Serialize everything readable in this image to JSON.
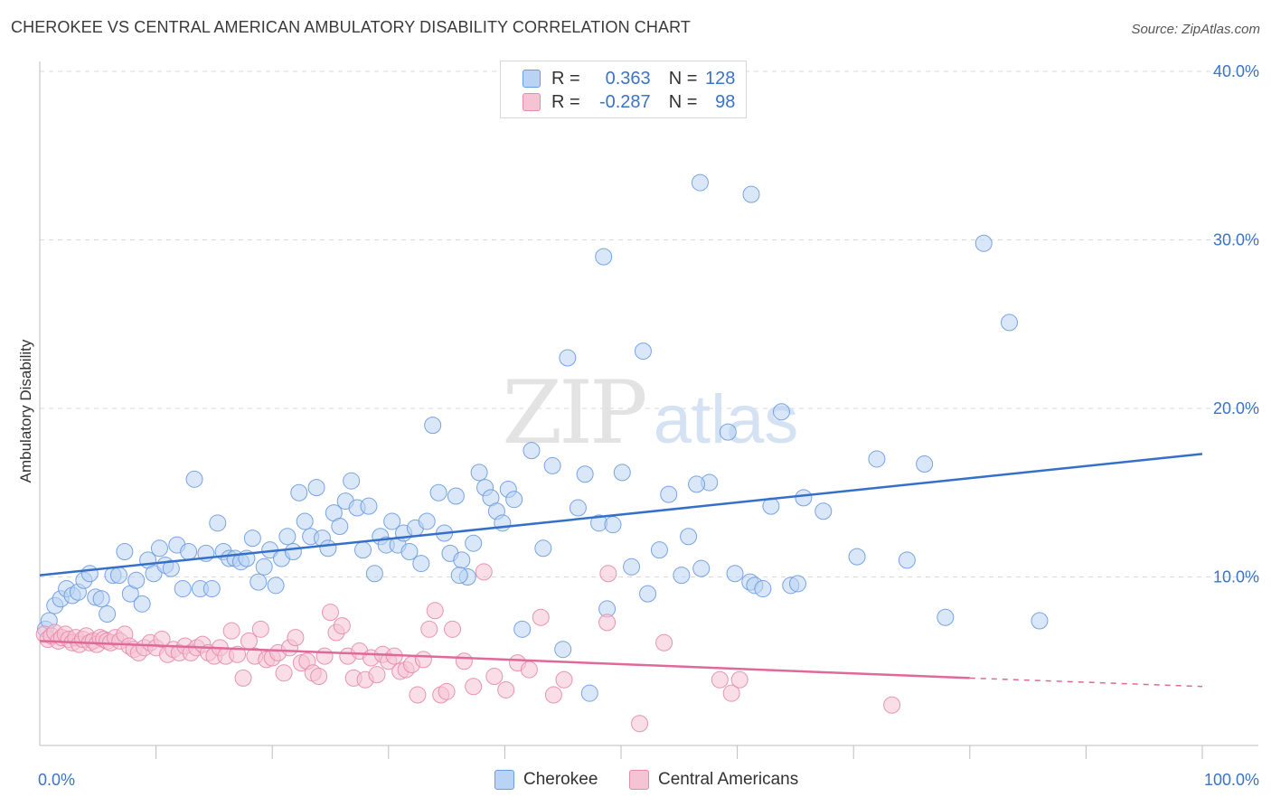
{
  "title": "CHEROKEE VS CENTRAL AMERICAN AMBULATORY DISABILITY CORRELATION CHART",
  "source": "Source: ZipAtlas.com",
  "watermark": {
    "zip": "ZIP",
    "atlas": "atlas"
  },
  "legend": {
    "r_label": "R =",
    "n_label": "N =",
    "rows": [
      {
        "r": "0.363",
        "n": "128",
        "fill": "#b9d3f4",
        "stroke": "#6a9be0"
      },
      {
        "r": "-0.287",
        "n": "98",
        "fill": "#f6c3d4",
        "stroke": "#e58aa8"
      }
    ]
  },
  "chart_data": {
    "type": "scatter",
    "title": "CHEROKEE VS CENTRAL AMERICAN AMBULATORY DISABILITY CORRELATION CHART",
    "xlabel": "",
    "ylabel": "Ambulatory Disability",
    "xlim": [
      0,
      100
    ],
    "ylim": [
      0,
      40
    ],
    "x_tick_labels": [
      "0.0%",
      "100.0%"
    ],
    "y_ticks": [
      10,
      20,
      30,
      40
    ],
    "y_tick_labels": [
      "10.0%",
      "20.0%",
      "30.0%",
      "40.0%"
    ],
    "grid": "horizontal dashed",
    "legend_position": "top-center",
    "series": [
      {
        "name": "Cherokee",
        "color": "#6a9be0",
        "fill": "#b9d3f4",
        "trend": {
          "x": [
            0,
            100
          ],
          "y": [
            10.1,
            17.3
          ]
        },
        "points": [
          [
            0.5,
            6.9
          ],
          [
            0.8,
            7.4
          ],
          [
            1.3,
            8.3
          ],
          [
            1.8,
            8.7
          ],
          [
            2.3,
            9.3
          ],
          [
            2.8,
            8.9
          ],
          [
            3.3,
            9.1
          ],
          [
            3.8,
            9.8
          ],
          [
            4.3,
            10.2
          ],
          [
            4.8,
            8.8
          ],
          [
            5.3,
            8.7
          ],
          [
            5.8,
            7.8
          ],
          [
            6.3,
            10.1
          ],
          [
            6.8,
            10.1
          ],
          [
            7.3,
            11.5
          ],
          [
            7.8,
            9.0
          ],
          [
            8.3,
            9.8
          ],
          [
            8.8,
            8.4
          ],
          [
            9.3,
            11.0
          ],
          [
            9.8,
            10.2
          ],
          [
            10.3,
            11.7
          ],
          [
            10.8,
            10.7
          ],
          [
            11.3,
            10.5
          ],
          [
            11.8,
            11.9
          ],
          [
            12.3,
            9.3
          ],
          [
            12.8,
            11.5
          ],
          [
            13.3,
            15.8
          ],
          [
            13.8,
            9.3
          ],
          [
            14.3,
            11.4
          ],
          [
            14.8,
            9.3
          ],
          [
            15.3,
            13.2
          ],
          [
            15.8,
            11.5
          ],
          [
            16.3,
            11.1
          ],
          [
            16.8,
            11.1
          ],
          [
            17.3,
            10.9
          ],
          [
            17.8,
            11.1
          ],
          [
            18.3,
            12.3
          ],
          [
            18.8,
            9.7
          ],
          [
            19.3,
            10.6
          ],
          [
            19.8,
            11.6
          ],
          [
            20.3,
            9.5
          ],
          [
            20.8,
            11.1
          ],
          [
            21.3,
            12.4
          ],
          [
            21.8,
            11.5
          ],
          [
            22.3,
            15.0
          ],
          [
            22.8,
            13.3
          ],
          [
            23.3,
            12.4
          ],
          [
            23.8,
            15.3
          ],
          [
            24.3,
            12.3
          ],
          [
            24.8,
            11.7
          ],
          [
            25.3,
            13.8
          ],
          [
            25.8,
            13.0
          ],
          [
            26.3,
            14.5
          ],
          [
            26.8,
            15.7
          ],
          [
            27.3,
            14.1
          ],
          [
            27.8,
            11.6
          ],
          [
            28.3,
            14.2
          ],
          [
            28.8,
            10.2
          ],
          [
            29.3,
            12.4
          ],
          [
            29.8,
            11.9
          ],
          [
            30.3,
            13.3
          ],
          [
            30.8,
            11.9
          ],
          [
            31.3,
            12.6
          ],
          [
            31.8,
            11.5
          ],
          [
            32.3,
            12.9
          ],
          [
            32.8,
            10.8
          ],
          [
            33.3,
            13.3
          ],
          [
            33.8,
            19.0
          ],
          [
            34.3,
            15.0
          ],
          [
            34.8,
            12.6
          ],
          [
            35.3,
            11.4
          ],
          [
            35.8,
            14.8
          ],
          [
            36.3,
            11.0
          ],
          [
            36.8,
            10.0
          ],
          [
            37.3,
            12.0
          ],
          [
            37.8,
            16.2
          ],
          [
            38.3,
            15.3
          ],
          [
            38.8,
            14.7
          ],
          [
            39.3,
            13.9
          ],
          [
            39.8,
            13.2
          ],
          [
            40.3,
            15.2
          ],
          [
            40.8,
            14.6
          ],
          [
            41.5,
            6.9
          ],
          [
            42.3,
            17.5
          ],
          [
            43.3,
            11.7
          ],
          [
            44.1,
            16.6
          ],
          [
            45.0,
            5.7
          ],
          [
            45.4,
            23.0
          ],
          [
            46.3,
            14.1
          ],
          [
            46.9,
            16.1
          ],
          [
            47.3,
            3.1
          ],
          [
            48.1,
            13.2
          ],
          [
            48.5,
            29.0
          ],
          [
            48.8,
            8.1
          ],
          [
            49.3,
            13.1
          ],
          [
            50.1,
            16.2
          ],
          [
            50.9,
            10.6
          ],
          [
            51.9,
            23.4
          ],
          [
            52.3,
            9.0
          ],
          [
            53.3,
            11.6
          ],
          [
            54.1,
            14.9
          ],
          [
            55.2,
            10.1
          ],
          [
            55.8,
            12.4
          ],
          [
            56.9,
            10.5
          ],
          [
            57.6,
            15.6
          ],
          [
            59.2,
            18.6
          ],
          [
            59.8,
            10.2
          ],
          [
            61.1,
            9.7
          ],
          [
            61.5,
            9.5
          ],
          [
            62.2,
            9.3
          ],
          [
            62.9,
            14.2
          ],
          [
            63.8,
            19.8
          ],
          [
            64.6,
            9.5
          ],
          [
            65.2,
            9.6
          ],
          [
            65.7,
            14.7
          ],
          [
            67.4,
            13.9
          ],
          [
            70.3,
            11.2
          ],
          [
            72.0,
            17.0
          ],
          [
            74.6,
            11.0
          ],
          [
            76.1,
            16.7
          ],
          [
            77.9,
            7.6
          ],
          [
            83.4,
            25.1
          ],
          [
            86.0,
            7.4
          ],
          [
            56.8,
            33.4
          ],
          [
            61.2,
            32.7
          ],
          [
            81.2,
            29.8
          ],
          [
            36.1,
            10.1
          ],
          [
            56.5,
            15.5
          ]
        ]
      },
      {
        "name": "Central Americans",
        "color": "#e58aa8",
        "fill": "#f6c3d4",
        "trend": {
          "x": [
            0,
            80
          ],
          "y": [
            6.2,
            4.0
          ]
        },
        "trend_dashed": {
          "x": [
            80,
            100
          ],
          "y": [
            4.0,
            3.5
          ]
        },
        "points": [
          [
            0.4,
            6.6
          ],
          [
            0.7,
            6.3
          ],
          [
            1.0,
            6.5
          ],
          [
            1.3,
            6.7
          ],
          [
            1.6,
            6.2
          ],
          [
            1.9,
            6.4
          ],
          [
            2.2,
            6.6
          ],
          [
            2.5,
            6.3
          ],
          [
            2.8,
            6.1
          ],
          [
            3.1,
            6.4
          ],
          [
            3.4,
            6.0
          ],
          [
            3.7,
            6.3
          ],
          [
            4.0,
            6.5
          ],
          [
            4.3,
            6.1
          ],
          [
            4.6,
            6.2
          ],
          [
            4.9,
            6.0
          ],
          [
            5.2,
            6.4
          ],
          [
            5.5,
            6.3
          ],
          [
            5.8,
            6.2
          ],
          [
            6.1,
            6.1
          ],
          [
            6.5,
            6.4
          ],
          [
            6.9,
            6.2
          ],
          [
            7.3,
            6.6
          ],
          [
            7.7,
            5.9
          ],
          [
            8.1,
            5.7
          ],
          [
            8.5,
            5.5
          ],
          [
            9.0,
            5.8
          ],
          [
            9.5,
            6.1
          ],
          [
            10.0,
            5.8
          ],
          [
            10.5,
            6.3
          ],
          [
            11.0,
            5.4
          ],
          [
            11.5,
            5.7
          ],
          [
            12.0,
            5.5
          ],
          [
            12.5,
            5.9
          ],
          [
            13.0,
            5.5
          ],
          [
            13.5,
            5.8
          ],
          [
            14.0,
            6.0
          ],
          [
            14.5,
            5.5
          ],
          [
            15.0,
            5.3
          ],
          [
            15.5,
            5.8
          ],
          [
            16.0,
            5.3
          ],
          [
            16.5,
            6.8
          ],
          [
            17.0,
            5.4
          ],
          [
            17.5,
            4.0
          ],
          [
            18.0,
            6.2
          ],
          [
            18.5,
            5.3
          ],
          [
            19.0,
            6.9
          ],
          [
            19.5,
            5.1
          ],
          [
            20.0,
            5.2
          ],
          [
            20.5,
            5.5
          ],
          [
            21.0,
            4.3
          ],
          [
            21.5,
            5.8
          ],
          [
            22.0,
            6.4
          ],
          [
            22.5,
            4.9
          ],
          [
            23.0,
            5.0
          ],
          [
            23.5,
            4.3
          ],
          [
            24.0,
            4.1
          ],
          [
            24.5,
            5.3
          ],
          [
            25.0,
            7.9
          ],
          [
            25.5,
            6.7
          ],
          [
            26.0,
            7.1
          ],
          [
            26.5,
            5.3
          ],
          [
            27.0,
            4.0
          ],
          [
            27.5,
            5.6
          ],
          [
            28.0,
            3.9
          ],
          [
            28.5,
            5.2
          ],
          [
            29.0,
            4.2
          ],
          [
            29.5,
            5.4
          ],
          [
            30.0,
            5.0
          ],
          [
            30.5,
            5.3
          ],
          [
            31.0,
            4.4
          ],
          [
            31.5,
            4.5
          ],
          [
            32.0,
            4.8
          ],
          [
            32.5,
            3.0
          ],
          [
            33.0,
            5.1
          ],
          [
            33.5,
            6.9
          ],
          [
            34.0,
            8.0
          ],
          [
            34.5,
            3.0
          ],
          [
            35.0,
            3.2
          ],
          [
            35.5,
            6.9
          ],
          [
            36.5,
            5.0
          ],
          [
            37.3,
            3.5
          ],
          [
            38.2,
            10.3
          ],
          [
            39.1,
            4.1
          ],
          [
            40.1,
            3.3
          ],
          [
            41.1,
            4.9
          ],
          [
            42.1,
            4.5
          ],
          [
            43.1,
            7.6
          ],
          [
            44.2,
            3.0
          ],
          [
            45.1,
            3.9
          ],
          [
            48.8,
            7.3
          ],
          [
            53.7,
            6.1
          ],
          [
            59.5,
            3.1
          ],
          [
            60.2,
            3.9
          ],
          [
            73.3,
            2.4
          ],
          [
            58.5,
            3.9
          ],
          [
            48.9,
            10.2
          ],
          [
            51.6,
            1.3
          ]
        ]
      }
    ]
  },
  "bottom_legend": [
    {
      "label": "Cherokee",
      "fill": "#b9d3f4",
      "stroke": "#6a9be0"
    },
    {
      "label": "Central Americans",
      "fill": "#f6c3d4",
      "stroke": "#e58aa8"
    }
  ]
}
